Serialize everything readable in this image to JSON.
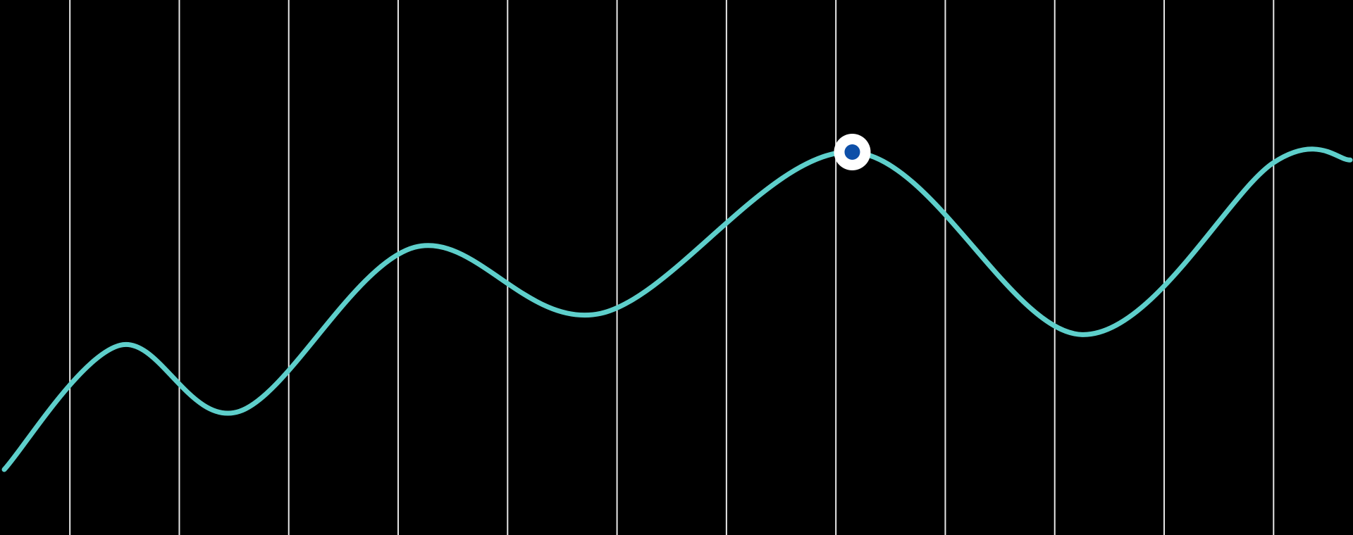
{
  "chart_data": {
    "type": "line",
    "title": "",
    "xlabel": "",
    "ylabel": "",
    "grid": "vertical",
    "legend": "none",
    "x_range": [
      0,
      12.3
    ],
    "y_range": [
      0,
      1
    ],
    "vertical_gridline_x": [
      0.6,
      1.6,
      2.6,
      3.6,
      4.6,
      5.6,
      6.6,
      7.6,
      8.6,
      9.6,
      10.6,
      11.6
    ],
    "series": [
      {
        "values": [
          {
            "x": 0.0,
            "y": 0.12
          },
          {
            "x": 1.06,
            "y": 0.355
          },
          {
            "x": 2.15,
            "y": 0.23
          },
          {
            "x": 3.75,
            "y": 0.54
          },
          {
            "x": 5.45,
            "y": 0.415
          },
          {
            "x": 7.75,
            "y": 0.72
          },
          {
            "x": 9.85,
            "y": 0.375
          },
          {
            "x": 11.6,
            "y": 0.7
          },
          {
            "x": 12.3,
            "y": 0.705
          }
        ]
      }
    ],
    "highlighted_point": {
      "x": 7.75,
      "y": 0.72
    }
  },
  "colors": {
    "background": "#000000",
    "gridline": "#e8e8e8",
    "line": "#5ecfcb",
    "marker_ring": "#ffffff",
    "marker_center": "#0d4fa8"
  }
}
